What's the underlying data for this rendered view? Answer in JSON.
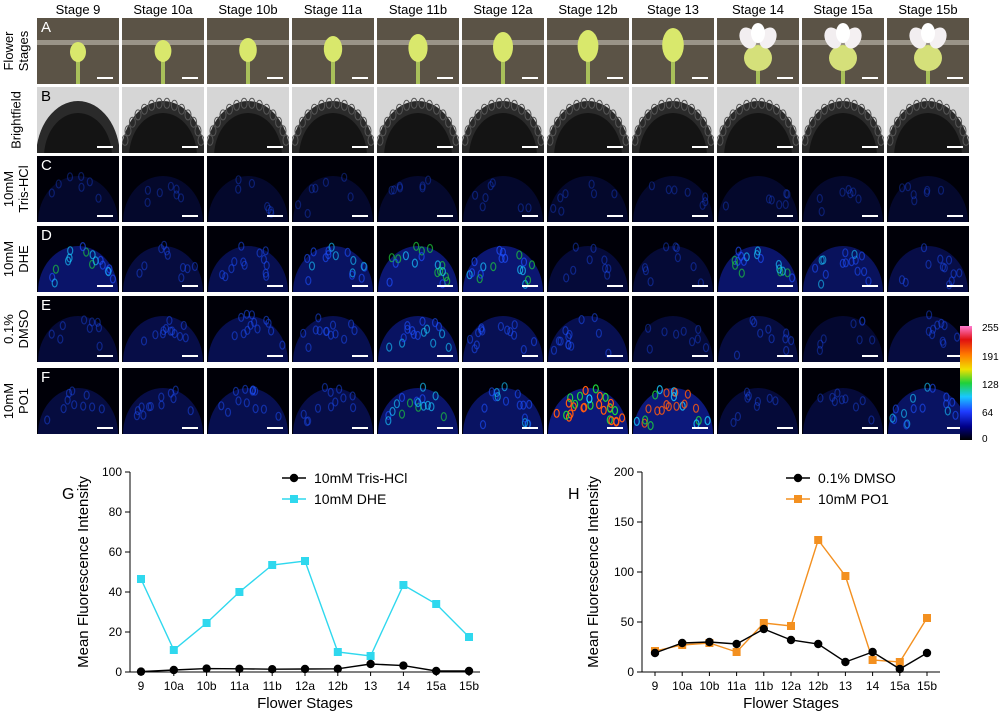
{
  "stages": [
    "Stage 9",
    "Stage 10a",
    "Stage 10b",
    "Stage 11a",
    "Stage 11b",
    "Stage 12a",
    "Stage 12b",
    "Stage 13",
    "Stage 14",
    "Stage 15a",
    "Stage 15b"
  ],
  "rows": [
    {
      "letter": "A",
      "label_lines": [
        "Flower",
        "Stages"
      ],
      "kind": "flower"
    },
    {
      "letter": "B",
      "label_lines": [
        "Brightfield"
      ],
      "kind": "brightfield"
    },
    {
      "letter": "C",
      "label_lines": [
        "10mM",
        "Tris-HCl"
      ],
      "kind": "fluor",
      "levels": [
        0.05,
        0.05,
        0.06,
        0.05,
        0.05,
        0.06,
        0.05,
        0.05,
        0.05,
        0.05,
        0.05
      ]
    },
    {
      "letter": "D",
      "label_lines": [
        "10mM",
        "DHE"
      ],
      "kind": "fluor",
      "levels": [
        0.5,
        0.2,
        0.3,
        0.45,
        0.55,
        0.55,
        0.15,
        0.12,
        0.5,
        0.4,
        0.25
      ]
    },
    {
      "letter": "E",
      "label_lines": [
        "0.1%",
        "DMSO"
      ],
      "kind": "fluor",
      "levels": [
        0.15,
        0.25,
        0.3,
        0.3,
        0.45,
        0.35,
        0.3,
        0.12,
        0.2,
        0.08,
        0.2
      ]
    },
    {
      "letter": "F",
      "label_lines": [
        "10mM",
        "PO1"
      ],
      "kind": "fluor",
      "levels": [
        0.2,
        0.25,
        0.3,
        0.25,
        0.5,
        0.45,
        1.0,
        0.75,
        0.15,
        0.15,
        0.45
      ]
    }
  ],
  "colorbar": {
    "ticks": [
      "255",
      "191",
      "128",
      "64",
      "0"
    ],
    "stops": [
      "#000000",
      "#00008a",
      "#1e3cff",
      "#19c8ff",
      "#1fd13a",
      "#f0e000",
      "#ff7a00",
      "#e01010",
      "#ff7ad0"
    ]
  },
  "chart_data": [
    {
      "panel": "G",
      "type": "line",
      "categories": [
        "9",
        "10a",
        "10b",
        "11a",
        "11b",
        "12a",
        "12b",
        "13",
        "14",
        "15a",
        "15b"
      ],
      "xlabel": "Flower Stages",
      "ylabel": "Mean Fluorescence Intensity",
      "ylim": [
        0,
        100
      ],
      "yticks": [
        0,
        20,
        40,
        60,
        80,
        100
      ],
      "legend_position": "top-right",
      "series": [
        {
          "name": "10mM Tris-HCl",
          "color": "#000000",
          "marker": "circle",
          "values": [
            0.2,
            1.0,
            1.7,
            1.6,
            1.4,
            1.5,
            1.6,
            4.0,
            3.2,
            0.5,
            0.5
          ]
        },
        {
          "name": "10mM DHE",
          "color": "#2fd8ee",
          "marker": "square",
          "values": [
            46.5,
            11.0,
            24.5,
            40.0,
            53.5,
            55.5,
            10.0,
            8.0,
            43.5,
            34.0,
            17.5
          ]
        }
      ]
    },
    {
      "panel": "H",
      "type": "line",
      "categories": [
        "9",
        "10a",
        "10b",
        "11a",
        "11b",
        "12a",
        "12b",
        "13",
        "14",
        "15a",
        "15b"
      ],
      "xlabel": "Flower Stages",
      "ylabel": "Mean Fluorescence Intensity",
      "ylim": [
        0,
        200
      ],
      "yticks": [
        0,
        50,
        100,
        150,
        200
      ],
      "legend_position": "top-right",
      "series": [
        {
          "name": "0.1% DMSO",
          "color": "#000000",
          "marker": "circle",
          "values": [
            19,
            29,
            30,
            28,
            43,
            32,
            28,
            10,
            20,
            3,
            19
          ]
        },
        {
          "name": "10mM PO1",
          "color": "#f39020",
          "marker": "square",
          "values": [
            21,
            27,
            29,
            20,
            49,
            46,
            132,
            96,
            12,
            10,
            54
          ]
        }
      ]
    }
  ]
}
